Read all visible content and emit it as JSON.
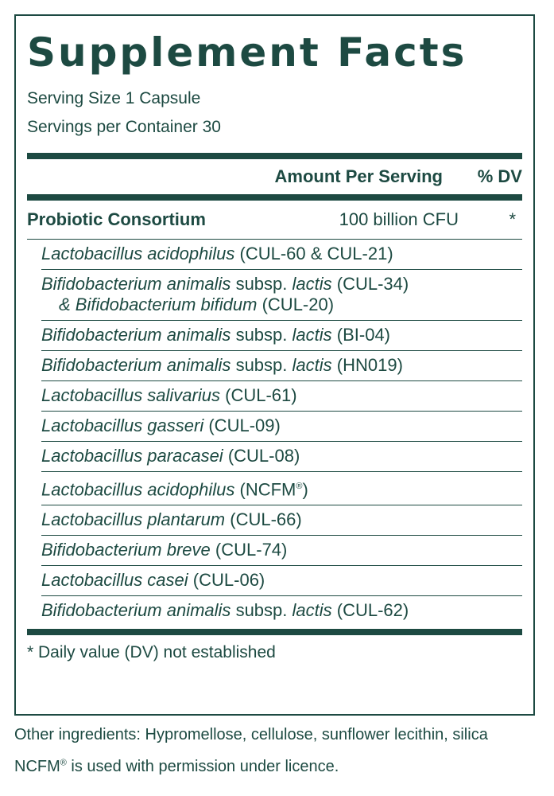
{
  "label": {
    "title": "Supplement Facts",
    "serving_size": "Serving Size 1 Capsule",
    "servings_per_container": "Servings per Container 30",
    "header_amount": "Amount Per Serving",
    "header_dv": "% DV",
    "main_ingredient": {
      "name": "Probiotic Consortium",
      "amount": "100 billion CFU",
      "dv": "*"
    },
    "strains": [
      {
        "species": "Lactobacillus acidophilus",
        "code": "(CUL-60 & CUL-21)"
      },
      {
        "species": "Bifidobacterium animalis",
        "mid": "subsp.",
        "sub": "lactis",
        "code": "(CUL-34)",
        "line2_prefix": "& ",
        "line2_species": "Bifidobacterium bifidum",
        "line2_code": "(CUL-20)"
      },
      {
        "species": "Bifidobacterium animalis",
        "mid": "subsp.",
        "sub": "lactis",
        "code": "(BI-04)"
      },
      {
        "species": "Bifidobacterium animalis",
        "mid": "subsp.",
        "sub": "lactis",
        "code": "(HN019)"
      },
      {
        "species": "Lactobacillus salivarius",
        "code": "(CUL-61)"
      },
      {
        "species": "Lactobacillus gasseri",
        "code": "(CUL-09)"
      },
      {
        "species": "Lactobacillus paracasei",
        "code": "(CUL-08)"
      },
      {
        "species": "Lactobacillus acidophilus",
        "code": "(NCFM",
        "reg": "®",
        "code_end": ")"
      },
      {
        "species": "Lactobacillus plantarum",
        "code": "(CUL-66)"
      },
      {
        "species": "Bifidobacterium breve",
        "code": "(CUL-74)"
      },
      {
        "species": "Lactobacillus casei",
        "code": "(CUL-06)"
      },
      {
        "species": "Bifidobacterium animalis",
        "mid": "subsp.",
        "sub": "lactis",
        "code": "(CUL-62)"
      }
    ],
    "footnote": "* Daily value (DV) not established"
  },
  "other_ingredients": "Other ingredients: Hypromellose, cellulose, sunflower lecithin,  silica",
  "licence_prefix": "NCFM",
  "licence_reg": "®",
  "licence_text": " is used with permission under licence.",
  "colors": {
    "ink": "#1d4a42"
  }
}
